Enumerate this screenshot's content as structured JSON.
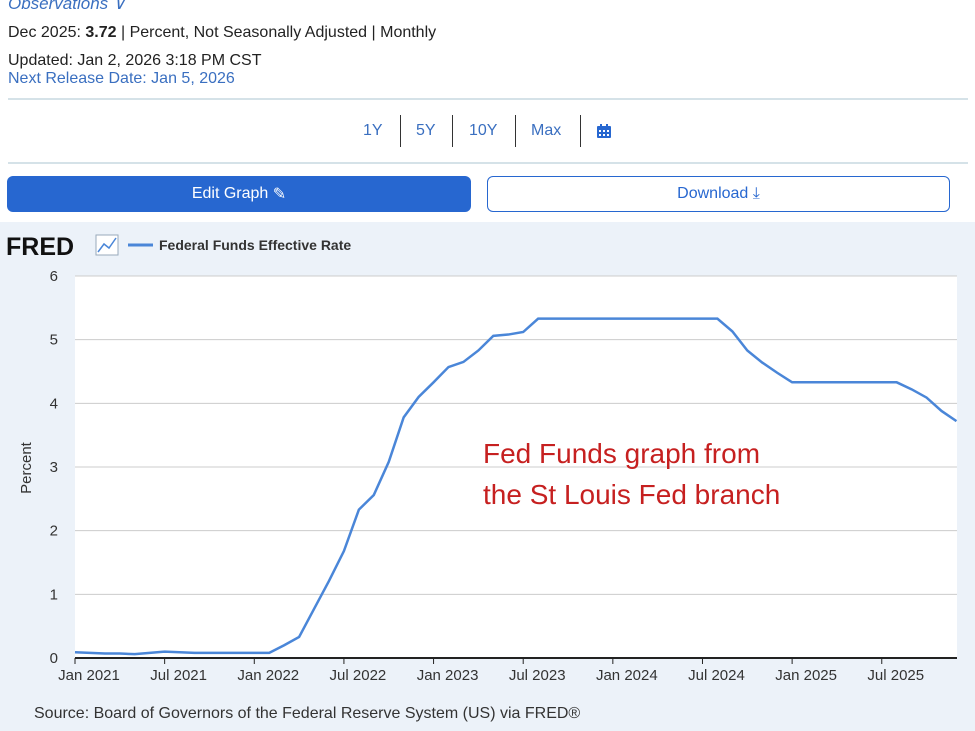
{
  "header": {
    "observations": "Observations ∨",
    "obs_date": "Dec 2025:",
    "obs_value": "3.72",
    "obs_units": "| Percent, Not Seasonally Adjusted | Monthly",
    "updated": "Updated: Jan 2, 2026 3:18 PM CST",
    "next_release": "Next Release Date: Jan 5, 2026"
  },
  "ranges": [
    "1Y",
    "5Y",
    "10Y",
    "Max"
  ],
  "buttons": {
    "edit": "Edit Graph",
    "download": "Download"
  },
  "footer": {
    "source": "Source: Board of Governors of the Federal Reserve System (US) via FRED®"
  },
  "annotation": [
    "Fed Funds graph from",
    "the St Louis Fed branch"
  ],
  "colors": {
    "line": "#4a86d8",
    "accent": "#2767d0"
  },
  "chart_data": {
    "type": "line",
    "logo": "FRED",
    "legend": "Federal Funds Effective Rate",
    "ylabel": "Percent",
    "ylim": [
      0,
      6
    ],
    "yticks": [
      0,
      1,
      2,
      3,
      4,
      5,
      6
    ],
    "xticks": [
      "Jan 2021",
      "Jul 2021",
      "Jan 2022",
      "Jul 2022",
      "Jan 2023",
      "Jul 2023",
      "Jan 2024",
      "Jul 2024",
      "Jan 2025",
      "Jul 2025"
    ],
    "start": "2021-01",
    "frequency": "monthly",
    "values": [
      0.09,
      0.08,
      0.07,
      0.07,
      0.06,
      0.08,
      0.1,
      0.09,
      0.08,
      0.08,
      0.08,
      0.08,
      0.08,
      0.08,
      0.2,
      0.33,
      0.77,
      1.21,
      1.68,
      2.33,
      2.56,
      3.08,
      3.78,
      4.1,
      4.33,
      4.57,
      4.65,
      4.83,
      5.06,
      5.08,
      5.12,
      5.33,
      5.33,
      5.33,
      5.33,
      5.33,
      5.33,
      5.33,
      5.33,
      5.33,
      5.33,
      5.33,
      5.33,
      5.33,
      5.13,
      4.83,
      4.64,
      4.48,
      4.33,
      4.33,
      4.33,
      4.33,
      4.33,
      4.33,
      4.33,
      4.33,
      4.22,
      4.09,
      3.88,
      3.72
    ]
  }
}
